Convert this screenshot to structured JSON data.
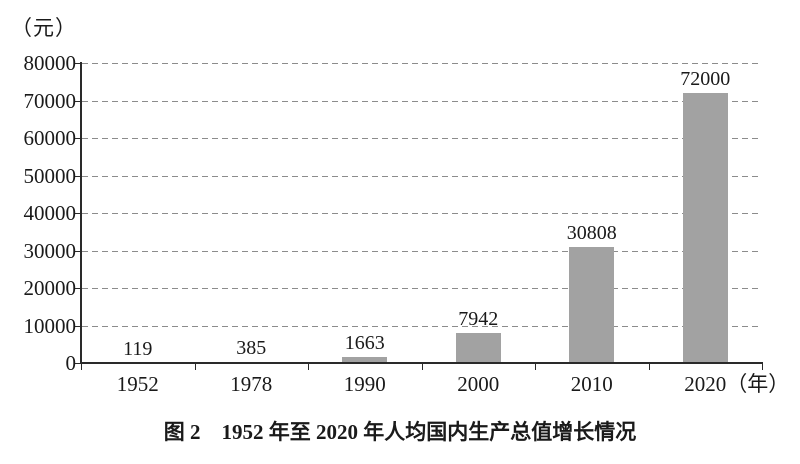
{
  "chart_data": {
    "type": "bar",
    "unit_label": "（元）",
    "categories": [
      "1952",
      "1978",
      "1990",
      "2000",
      "2010",
      "2020"
    ],
    "values": [
      119,
      385,
      1663,
      7942,
      30808,
      72000
    ],
    "value_labels": [
      "119",
      "385",
      "1663",
      "7942",
      "30808",
      "72000"
    ],
    "x_axis_suffix": "（年）",
    "xlabel": "",
    "ylabel": "（元）",
    "ylim": [
      0,
      80000
    ],
    "yticks": [
      0,
      10000,
      20000,
      30000,
      40000,
      50000,
      60000,
      70000,
      80000
    ],
    "grid": "horizontal-dashed",
    "legend": "none",
    "bar_color": "#a2a2a2",
    "gridline_color": "#8c8c8c",
    "axis_color": "#2a2a2a",
    "text_color": "#1a1a1a"
  },
  "caption": "图 2　1952 年至 2020 年人均国内生产总值增长情况"
}
